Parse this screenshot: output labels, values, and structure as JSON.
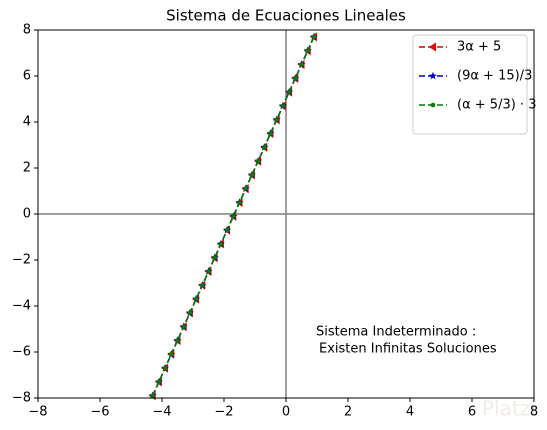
{
  "chart_data": {
    "type": "line",
    "title": "Sistema de Ecuaciones Lineales",
    "x": [
      -4.3,
      -4.1,
      -3.9,
      -3.7,
      -3.5,
      -3.3,
      -3.1,
      -2.9,
      -2.7,
      -2.5,
      -2.3,
      -2.1,
      -1.9,
      -1.7,
      -1.5,
      -1.3,
      -1.1,
      -0.9,
      -0.7,
      -0.5,
      -0.3,
      -0.1,
      0.1,
      0.3,
      0.5,
      0.7,
      0.9
    ],
    "series": [
      {
        "name": "3α + 5",
        "color": "#e00000",
        "marker": "triangle-left",
        "values": [
          -7.9,
          -7.3,
          -6.7,
          -6.1,
          -5.5,
          -4.9,
          -4.3,
          -3.7,
          -3.1,
          -2.5,
          -1.9,
          -1.3,
          -0.7,
          -0.1,
          0.5,
          1.1,
          1.7,
          2.3,
          2.9,
          3.5,
          4.1,
          4.7,
          5.3,
          5.9,
          6.5,
          7.1,
          7.7
        ]
      },
      {
        "name": "(9α + 15)/3",
        "color": "#0000cc",
        "marker": "star",
        "values": [
          -7.9,
          -7.3,
          -6.7,
          -6.1,
          -5.5,
          -4.9,
          -4.3,
          -3.7,
          -3.1,
          -2.5,
          -1.9,
          -1.3,
          -0.7,
          -0.1,
          0.5,
          1.1,
          1.7,
          2.3,
          2.9,
          3.5,
          4.1,
          4.7,
          5.3,
          5.9,
          6.5,
          7.1,
          7.7
        ]
      },
      {
        "name": "(α + 5/3) · 3",
        "color": "#007a00",
        "marker": "circle",
        "values": [
          -7.9,
          -7.3,
          -6.7,
          -6.1,
          -5.5,
          -4.9,
          -4.3,
          -3.7,
          -3.1,
          -2.5,
          -1.9,
          -1.3,
          -0.7,
          -0.1,
          0.5,
          1.1,
          1.7,
          2.3,
          2.9,
          3.5,
          4.1,
          4.7,
          5.3,
          5.9,
          6.5,
          7.1,
          7.7
        ]
      }
    ],
    "xlim": [
      -8,
      8
    ],
    "ylim": [
      -8,
      8
    ],
    "xticks": [
      {
        "value": -8,
        "label": "−8"
      },
      {
        "value": -6,
        "label": "−6"
      },
      {
        "value": -4,
        "label": "−4"
      },
      {
        "value": -2,
        "label": "−2"
      },
      0,
      2,
      4,
      6,
      8
    ],
    "yticks": [
      {
        "value": -8,
        "label": "−8"
      },
      {
        "value": -6,
        "label": "−6"
      },
      {
        "value": -4,
        "label": "−4"
      },
      {
        "value": -2,
        "label": "−2"
      },
      0,
      2,
      4,
      6,
      8
    ],
    "legend": "upper right",
    "annotation": [
      "Sistema Indeterminado :",
      "Existen Infinitas Soluciones"
    ],
    "watermark": "Platzi"
  }
}
